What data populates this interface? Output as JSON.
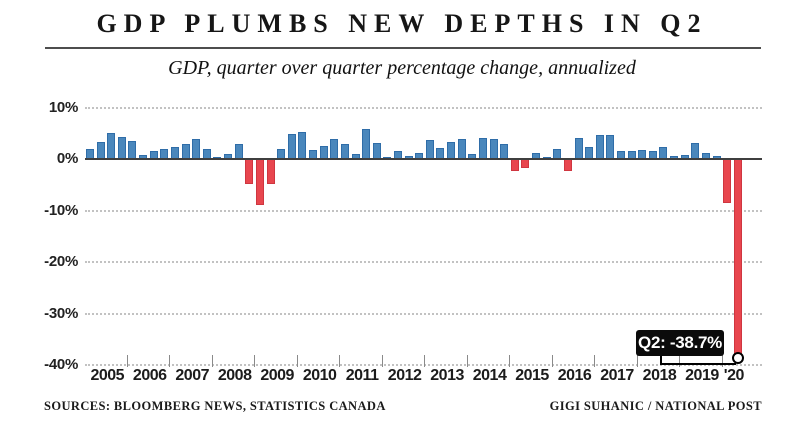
{
  "title": "GDP PLUMBS NEW DEPTHS IN Q2",
  "subtitle": "GDP, quarter over quarter percentage change, annualized",
  "annotation": {
    "label": "Q2: -38.7%"
  },
  "footer": {
    "left": "SOURCES: BLOOMBERG NEWS, STATISTICS CANADA",
    "right": "GIGI SUHANIC / NATIONAL POST"
  },
  "colors": {
    "positive": "#4a87bc",
    "positive_border": "#2f6da8",
    "negative": "#e8464e",
    "negative_border": "#cf3640",
    "axis": "#3f3f3f",
    "grid": "#c2c2c2",
    "callout_bg": "#0b0b0b",
    "callout_text": "#ffffff"
  },
  "chart_data": {
    "type": "bar",
    "title": "GDP PLUMBS NEW DEPTHS IN Q2",
    "subtitle": "GDP, quarter over quarter percentage change, annualized",
    "unit": "percent, annualized quarter-over-quarter change",
    "frequency": "quarterly",
    "start": "2005 Q1",
    "end": "2020 Q2",
    "ylim": [
      -40,
      10
    ],
    "grid": "dotted horizontal",
    "y_ticks": [
      "10%",
      "0%",
      "-10%",
      "-20%",
      "-30%",
      "-40%"
    ],
    "y_tick_values": [
      10,
      0,
      -10,
      -20,
      -30,
      -40
    ],
    "years": [
      "2005",
      "2006",
      "2007",
      "2008",
      "2009",
      "2010",
      "2011",
      "2012",
      "2013",
      "2014",
      "2015",
      "2016",
      "2017",
      "2018",
      "2019",
      "'20"
    ],
    "series": [
      {
        "name": "GDP q/q % change, annualized",
        "values": [
          2.0,
          3.3,
          5.1,
          4.3,
          3.4,
          0.8,
          1.5,
          1.9,
          2.4,
          2.9,
          3.8,
          1.9,
          0.4,
          1.0,
          3.0,
          -4.6,
          -8.7,
          -4.6,
          1.9,
          4.9,
          5.3,
          1.8,
          2.6,
          3.9,
          3.0,
          0.9,
          5.8,
          3.1,
          0.4,
          1.5,
          0.6,
          1.2,
          3.6,
          2.2,
          3.3,
          3.9,
          1.0,
          4.0,
          3.9,
          3.0,
          -2.1,
          -1.5,
          1.2,
          0.4,
          2.0,
          -2.2,
          4.1,
          2.3,
          4.6,
          4.7,
          1.5,
          1.5,
          1.8,
          1.5,
          2.3,
          0.5,
          0.7,
          3.2,
          1.2,
          0.5,
          -8.3,
          -38.7
        ]
      }
    ],
    "annotated_point": {
      "quarter": "2020 Q2",
      "value": -38.7,
      "label": "Q2: -38.7%"
    },
    "legend": "none"
  }
}
